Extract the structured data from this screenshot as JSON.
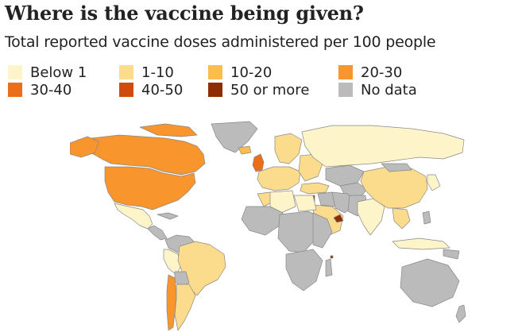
{
  "title": "Where is the vaccine being given?",
  "subtitle": "Total reported vaccine doses administered per 100 people",
  "legend": [
    {
      "label": "Below 1",
      "color": "#fdf5c9"
    },
    {
      "label": "1-10",
      "color": "#fbdc8c"
    },
    {
      "label": "10-20",
      "color": "#fbbd4b"
    },
    {
      "label": "20-30",
      "color": "#f8952d"
    },
    {
      "label": "30-40",
      "color": "#ec6e1a"
    },
    {
      "label": "40-50",
      "color": "#cf4c0c"
    },
    {
      "label": "50 or more",
      "color": "#8c2d04"
    },
    {
      "label": "No data",
      "color": "#bbbbbb"
    }
  ],
  "map": {
    "category_colors": {
      "below_1": "#fdf5c9",
      "1_10": "#fbdc8c",
      "10_20": "#fbbd4b",
      "20_30": "#f8952d",
      "30_40": "#ec6e1a",
      "40_50": "#cf4c0c",
      "50_plus": "#8c2d04",
      "no_data": "#bbbbbb"
    },
    "border_color": "#888888"
  }
}
